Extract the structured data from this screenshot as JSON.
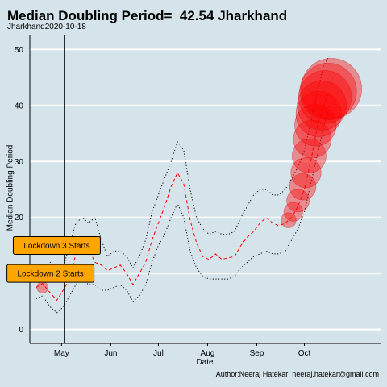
{
  "chart_data": {
    "type": "line",
    "title": "Median Doubling Period=  42.54 Jharkhand",
    "subtitle": "Jharkhand2020-10-18",
    "xlabel": "Date",
    "ylabel": "Median Doubling Period",
    "caption": "Author:Neeraj Hatekar: neeraj.hatekar@gmail.com",
    "ylim": [
      -2.5,
      52.5
    ],
    "yticks": [
      0,
      10,
      20,
      30,
      40,
      50
    ],
    "xlim": [
      "2020-04-11",
      "2020-11-18"
    ],
    "xticks": [
      {
        "date": "2020-05-01",
        "label": "May"
      },
      {
        "date": "2020-06-01",
        "label": "Jun"
      },
      {
        "date": "2020-07-01",
        "label": "Jul"
      },
      {
        "date": "2020-08-01",
        "label": "Aug"
      },
      {
        "date": "2020-09-01",
        "label": "Sep"
      },
      {
        "date": "2020-10-01",
        "label": "Oct"
      }
    ],
    "grid": true,
    "colors": {
      "median": "#ff0000",
      "band": "#000000",
      "bubble": "#ff0000",
      "label_box": "#ffa500",
      "background": "#d5e3ea",
      "gridline": "#ffffff"
    },
    "vline": "2020-05-03",
    "annotations": [
      {
        "label": "Lockdown 3 Starts",
        "date": "2020-04-28",
        "y": 15
      },
      {
        "label": "Lockdown 2 Starts",
        "date": "2020-04-24",
        "y": 10
      }
    ],
    "series": [
      {
        "role": "median",
        "style": "dashed",
        "x": [
          "2020-04-15",
          "2020-04-19",
          "2020-04-24",
          "2020-04-28",
          "2020-05-02",
          "2020-05-06",
          "2020-05-10",
          "2020-05-14",
          "2020-05-18",
          "2020-05-22",
          "2020-05-26",
          "2020-05-30",
          "2020-06-03",
          "2020-06-07",
          "2020-06-11",
          "2020-06-15",
          "2020-06-19",
          "2020-06-23",
          "2020-06-27",
          "2020-07-01",
          "2020-07-05",
          "2020-07-09",
          "2020-07-13",
          "2020-07-17",
          "2020-07-21",
          "2020-07-25",
          "2020-07-29",
          "2020-08-02",
          "2020-08-06",
          "2020-08-10",
          "2020-08-14",
          "2020-08-18",
          "2020-08-22",
          "2020-08-26",
          "2020-08-30",
          "2020-09-03",
          "2020-09-07",
          "2020-09-11",
          "2020-09-15",
          "2020-09-19",
          "2020-09-23",
          "2020-09-27",
          "2020-10-01",
          "2020-10-05",
          "2020-10-09",
          "2020-10-13",
          "2020-10-17"
        ],
        "values": [
          7.5,
          8.2,
          6.5,
          5.2,
          7,
          9,
          13.5,
          15,
          14.5,
          12,
          11.5,
          10.5,
          11,
          11.5,
          10,
          8,
          10,
          12,
          16,
          19,
          22,
          25.5,
          28,
          26,
          19.5,
          15.5,
          13,
          12.5,
          13.5,
          12.5,
          12.8,
          13,
          15,
          16.5,
          17.5,
          19,
          20,
          19,
          18.5,
          19,
          20,
          22,
          25,
          30,
          36,
          40,
          42.5
        ]
      },
      {
        "role": "upper",
        "style": "dotted",
        "x": [
          "2020-04-15",
          "2020-04-19",
          "2020-04-24",
          "2020-04-28",
          "2020-05-02",
          "2020-05-06",
          "2020-05-10",
          "2020-05-14",
          "2020-05-18",
          "2020-05-22",
          "2020-05-26",
          "2020-05-30",
          "2020-06-03",
          "2020-06-07",
          "2020-06-11",
          "2020-06-15",
          "2020-06-19",
          "2020-06-23",
          "2020-06-27",
          "2020-07-01",
          "2020-07-05",
          "2020-07-09",
          "2020-07-13",
          "2020-07-17",
          "2020-07-21",
          "2020-07-25",
          "2020-07-29",
          "2020-08-02",
          "2020-08-06",
          "2020-08-10",
          "2020-08-14",
          "2020-08-18",
          "2020-08-22",
          "2020-08-26",
          "2020-08-30",
          "2020-09-03",
          "2020-09-07",
          "2020-09-11",
          "2020-09-15",
          "2020-09-19",
          "2020-09-23",
          "2020-09-27",
          "2020-10-01",
          "2020-10-05",
          "2020-10-09",
          "2020-10-13",
          "2020-10-17"
        ],
        "values": [
          10,
          11,
          12,
          10,
          11,
          15,
          19,
          20,
          19,
          20,
          16,
          13,
          14,
          14,
          13,
          11,
          13,
          16,
          21,
          24,
          27,
          30,
          33.5,
          32,
          25,
          20,
          18,
          17,
          17.5,
          17,
          17,
          17.5,
          20,
          22,
          24,
          25,
          25,
          24,
          24,
          25,
          27,
          29,
          32,
          37,
          42,
          47,
          49
        ]
      },
      {
        "role": "lower",
        "style": "dotted",
        "x": [
          "2020-04-15",
          "2020-04-19",
          "2020-04-24",
          "2020-04-28",
          "2020-05-02",
          "2020-05-06",
          "2020-05-10",
          "2020-05-14",
          "2020-05-18",
          "2020-05-22",
          "2020-05-26",
          "2020-05-30",
          "2020-06-03",
          "2020-06-07",
          "2020-06-11",
          "2020-06-15",
          "2020-06-19",
          "2020-06-23",
          "2020-06-27",
          "2020-07-01",
          "2020-07-05",
          "2020-07-09",
          "2020-07-13",
          "2020-07-17",
          "2020-07-21",
          "2020-07-25",
          "2020-07-29",
          "2020-08-02",
          "2020-08-06",
          "2020-08-10",
          "2020-08-14",
          "2020-08-18",
          "2020-08-22",
          "2020-08-26",
          "2020-08-30",
          "2020-09-03",
          "2020-09-07",
          "2020-09-11",
          "2020-09-15",
          "2020-09-19",
          "2020-09-23",
          "2020-09-27",
          "2020-10-01",
          "2020-10-05",
          "2020-10-09",
          "2020-10-13",
          "2020-10-17"
        ],
        "values": [
          5.5,
          6,
          4,
          3,
          4,
          6,
          8,
          9,
          8,
          8,
          7,
          7,
          7.5,
          8,
          7,
          5,
          6,
          8,
          12,
          15,
          17,
          20,
          22.5,
          20,
          14,
          11,
          9.5,
          9,
          9,
          9,
          9,
          9.5,
          11,
          12,
          13,
          13.5,
          14,
          13.5,
          13.5,
          14,
          16,
          18,
          21,
          26,
          31,
          36,
          40
        ]
      }
    ],
    "bubbles": [
      {
        "date": "2020-04-19",
        "y": 7.5,
        "size": 1
      },
      {
        "date": "2020-09-21",
        "y": 19.5,
        "size": 2
      },
      {
        "date": "2020-09-24",
        "y": 21,
        "size": 3
      },
      {
        "date": "2020-09-27",
        "y": 23,
        "size": 4
      },
      {
        "date": "2020-09-30",
        "y": 25.5,
        "size": 5
      },
      {
        "date": "2020-10-02",
        "y": 28,
        "size": 6
      },
      {
        "date": "2020-10-04",
        "y": 31,
        "size": 7
      },
      {
        "date": "2020-10-06",
        "y": 34,
        "size": 8
      },
      {
        "date": "2020-10-08",
        "y": 36.5,
        "size": 9
      },
      {
        "date": "2020-10-10",
        "y": 38.5,
        "size": 10
      },
      {
        "date": "2020-10-12",
        "y": 40,
        "size": 11
      },
      {
        "date": "2020-10-14",
        "y": 41.5,
        "size": 12
      },
      {
        "date": "2020-10-16",
        "y": 42.5,
        "size": 13
      },
      {
        "date": "2020-10-18",
        "y": 43,
        "size": 14
      }
    ]
  }
}
